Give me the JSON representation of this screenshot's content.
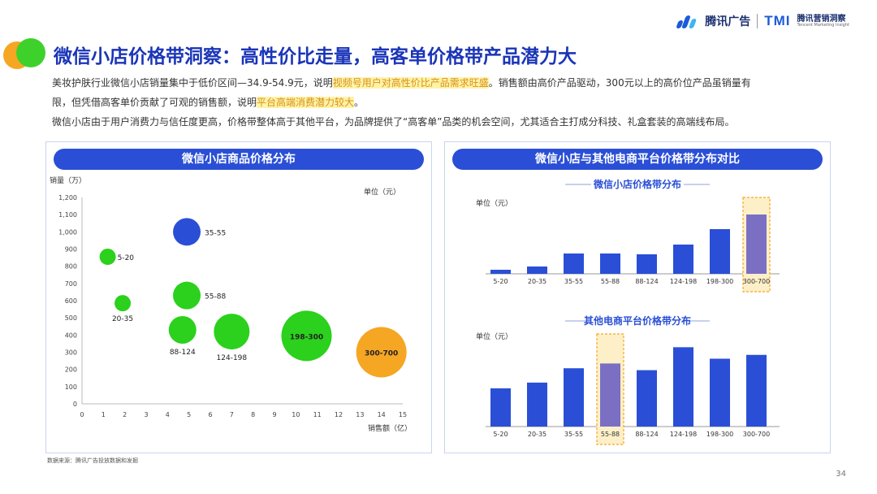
{
  "header": {
    "logo_text": "腾讯广告",
    "tmi_text": "TMI",
    "tmi_cn": "腾讯营销洞察",
    "tmi_en": "Tencent Marketing Insight"
  },
  "title": "微信小店价格带洞察：高性价比走量，高客单价格带产品潜力大",
  "description": {
    "l1a": "美妆护肤行业微信小店销量集中于低价区间—34.9-54.9元，说明",
    "l1h": "视频号用户对高性价比产品需求旺盛",
    "l1b": "。销售额由高价产品驱动，300元以上的高价位产品虽销量有",
    "l2a": "限，但凭借高客单价贡献了可观的销售额，说明",
    "l2h": "平台高端消费潜力较大",
    "l2b": "。",
    "l3": "微信小店由于用户消费力与信任度更高，价格带整体高于其他平台，为品牌提供了“高客单”品类的机会空间，尤其适合主打成分科技、礼盒套装的高端线布局。"
  },
  "left_panel": {
    "header": "微信小店商品价格分布"
  },
  "right_panel": {
    "header": "微信小店与其他电商平台价格带分布对比"
  },
  "chart_data": [
    {
      "type": "scatter",
      "title": "微信小店商品价格分布",
      "xlabel": "销售额（亿）",
      "ylabel": "销量（万）",
      "unit_label": "单位（元）",
      "xlim": [
        0,
        15
      ],
      "ylim": [
        0,
        1200
      ],
      "x_ticks": [
        "0",
        "1",
        "2",
        "3",
        "4",
        "5",
        "6",
        "7",
        "8",
        "9",
        "10",
        "11",
        "12",
        "13",
        "14",
        "15"
      ],
      "y_ticks": [
        "0",
        "100",
        "200",
        "300",
        "400",
        "500",
        "600",
        "700",
        "800",
        "900",
        "1,000",
        "1,100",
        "1,200"
      ],
      "points": [
        {
          "label": "5-20",
          "x": 1.2,
          "y": 855,
          "size": "small",
          "color": "#2bd11c"
        },
        {
          "label": "20-35",
          "x": 1.9,
          "y": 585,
          "size": "small",
          "color": "#2bd11c"
        },
        {
          "label": "35-55",
          "x": 4.9,
          "y": 1000,
          "size": "medium",
          "color": "#2a4fd6"
        },
        {
          "label": "55-88",
          "x": 4.9,
          "y": 630,
          "size": "medium",
          "color": "#2bd11c"
        },
        {
          "label": "88-124",
          "x": 4.7,
          "y": 430,
          "size": "medium",
          "color": "#2bd11c"
        },
        {
          "label": "124-198",
          "x": 7.0,
          "y": 420,
          "size": "large",
          "color": "#2bd11c"
        },
        {
          "label": "198-300",
          "x": 10.5,
          "y": 395,
          "size": "xlarge",
          "color": "#2bd11c"
        },
        {
          "label": "300-700",
          "x": 14.0,
          "y": 300,
          "size": "xlarge",
          "color": "#f5a623"
        }
      ]
    },
    {
      "type": "bar",
      "title": "微信小店价格带分布",
      "unit_label": "单位（元）",
      "categories": [
        "5-20",
        "20-35",
        "35-55",
        "55-88",
        "88-124",
        "124-198",
        "198-300",
        "300-700"
      ],
      "values": [
        5,
        9,
        25,
        25,
        24,
        36,
        55,
        73
      ],
      "highlight_index": 7
    },
    {
      "type": "bar",
      "title": "其他电商平台价格带分布",
      "unit_label": "单位（元）",
      "categories": [
        "5-20",
        "20-35",
        "35-55",
        "55-88",
        "88-124",
        "124-198",
        "198-300",
        "300-700"
      ],
      "values": [
        40,
        46,
        61,
        66,
        59,
        83,
        71,
        75
      ],
      "highlight_index": 3
    }
  ],
  "footnote": "数据来源：腾讯广告投放数据和发掘",
  "page_number": "34",
  "colors": {
    "title_blue": "#1a35b8",
    "bar_blue": "#2a4fd6",
    "highlight_bar": "#7b6fc4",
    "highlight_box": "#f5a623",
    "green": "#2bd11c",
    "orange": "#f5a623"
  }
}
